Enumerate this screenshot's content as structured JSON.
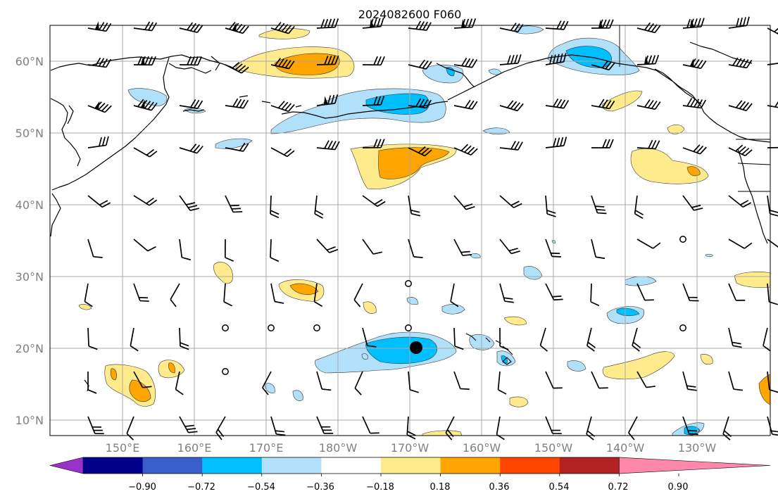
{
  "title": "2024082600 F060",
  "map": {
    "lat_labels": [
      "60°N",
      "50°N",
      "40°N",
      "30°N",
      "20°N",
      "10°N"
    ],
    "lon_labels": [
      "150°E",
      "160°E",
      "170°E",
      "180°W",
      "170°W",
      "160°W",
      "150°W",
      "140°W",
      "130°W"
    ]
  },
  "colorbar": {
    "colors": [
      "#9932cc",
      "#00008b",
      "#3a5fcd",
      "#00bfff",
      "#b0e0fa",
      "#ffffff",
      "#ffeb8c",
      "#ffa500",
      "#ff4500",
      "#b22222",
      "#ff88aa"
    ],
    "tick_labels": [
      "−0.90",
      "−0.72",
      "−0.54",
      "−0.36",
      "−0.18",
      "0.18",
      "0.36",
      "0.54",
      "0.72",
      "0.90"
    ]
  },
  "marker": {
    "symbol": "storm-center",
    "lat": 20.2,
    "lon": -169.5
  }
}
